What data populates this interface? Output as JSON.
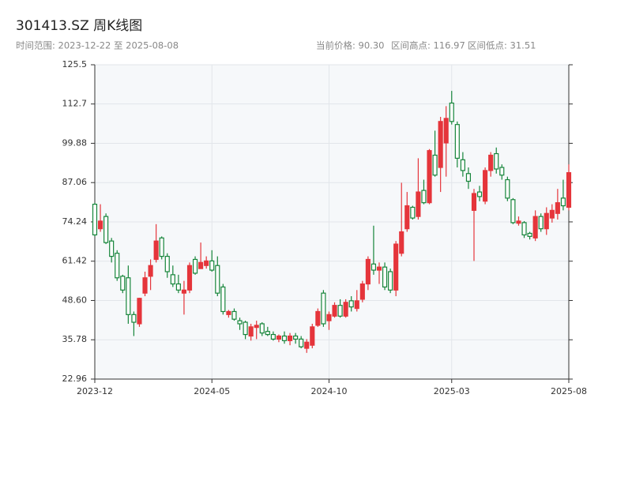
{
  "chart_data": {
    "type": "candlestick",
    "title": "301413.SZ 周K线图",
    "subtitle": "时间范围: 2023-12-22 至 2025-08-08",
    "stats": [
      "当前价格: 90.30",
      "区间高点: 116.97",
      "区间低点: 31.51"
    ],
    "categories": [
      "2023-12",
      null,
      null,
      null,
      null,
      null,
      null,
      null,
      null,
      null,
      null,
      null,
      null,
      null,
      null,
      null,
      null,
      null,
      null,
      null,
      null,
      "2024-05",
      null,
      null,
      null,
      null,
      null,
      null,
      null,
      null,
      null,
      null,
      null,
      null,
      null,
      null,
      null,
      null,
      null,
      null,
      null,
      null,
      "2024-10",
      null,
      null,
      null,
      null,
      null,
      null,
      null,
      null,
      null,
      null,
      null,
      null,
      null,
      null,
      null,
      null,
      null,
      null,
      null,
      null,
      null,
      "2025-03",
      null,
      null,
      null,
      null,
      null,
      null,
      null,
      null,
      null,
      null,
      null,
      null,
      null,
      null,
      null,
      null,
      null,
      null,
      null,
      null,
      "2025-08"
    ],
    "open": [
      80,
      72,
      76,
      68,
      64,
      56.5,
      56,
      44,
      41,
      51,
      56.5,
      62,
      69,
      63,
      57,
      54,
      51,
      52,
      62,
      59,
      60,
      61.5,
      60,
      53,
      44,
      45,
      42,
      41.5,
      37,
      39.8,
      41,
      38.5,
      37.5,
      36,
      37,
      35.5,
      37,
      36,
      33,
      34,
      40.5,
      51,
      42,
      43.5,
      47,
      43.5,
      48.5,
      46,
      49,
      54,
      60.5,
      58.5,
      59.5,
      58,
      52,
      64,
      72,
      79,
      76,
      84.5,
      80.5,
      96,
      92,
      100,
      113,
      106,
      94.5,
      90,
      78,
      84,
      81,
      91,
      96.5,
      92,
      88,
      81.5,
      73.8,
      74,
      70.5,
      69,
      76,
      72,
      75.5,
      77,
      82,
      79
    ],
    "high": [
      80.5,
      80,
      77,
      69,
      65,
      57,
      60,
      45,
      49.5,
      58,
      62,
      73.5,
      69.5,
      64,
      60,
      57,
      55,
      61,
      63,
      67.5,
      63,
      65,
      63,
      54,
      45.5,
      46,
      43,
      42,
      41,
      42,
      41.5,
      40,
      38.5,
      37.5,
      38.5,
      38,
      38,
      37,
      36,
      41,
      46,
      52,
      45,
      48,
      49,
      49,
      50,
      52,
      55,
      63,
      73,
      61,
      61,
      59,
      68,
      87,
      84,
      79.5,
      95,
      88,
      98,
      104,
      108.5,
      112,
      116.97,
      107,
      97,
      92,
      85,
      86,
      92,
      97,
      98.5,
      93,
      89,
      82,
      76,
      74.5,
      71,
      78,
      77,
      79,
      80,
      85,
      88,
      93
    ],
    "low": [
      69.5,
      71,
      67,
      61,
      55,
      51,
      41,
      37,
      40,
      50,
      52,
      61,
      62,
      56,
      53,
      51,
      44,
      51,
      57,
      59,
      59,
      58,
      50,
      44,
      43,
      42,
      39,
      36,
      35.5,
      36,
      37,
      37,
      35.5,
      35,
      34.5,
      34,
      34.5,
      33,
      31.51,
      33,
      40,
      40,
      39,
      43,
      43,
      43,
      45,
      45,
      48,
      52,
      57,
      54,
      52,
      51,
      50,
      63,
      71,
      75,
      75,
      80,
      80,
      89,
      84,
      89,
      106,
      92,
      89,
      85,
      61.5,
      81,
      80,
      89,
      90,
      88,
      81,
      73.5,
      73,
      69,
      68.5,
      68,
      71,
      70,
      74,
      75,
      78,
      78
    ],
    "close": [
      70,
      74.5,
      67.5,
      63,
      56,
      52,
      44,
      41.5,
      49.3,
      56,
      60,
      68,
      63,
      58,
      54,
      52,
      52,
      60,
      57.5,
      61,
      61.5,
      58.5,
      51,
      45,
      45,
      42.5,
      41,
      37.5,
      40,
      40.5,
      38,
      37.5,
      36,
      37,
      35.5,
      37,
      36,
      33.5,
      35,
      40,
      45,
      41,
      44,
      47,
      43.5,
      48,
      46.5,
      48.5,
      54,
      62,
      58.5,
      59.5,
      53,
      52,
      67,
      71,
      79.5,
      75.5,
      84,
      80.5,
      97.5,
      89.5,
      107,
      108,
      107,
      95,
      91,
      87.5,
      83.5,
      82.5,
      91,
      96,
      91.5,
      89.5,
      82,
      74,
      74.5,
      70,
      69.5,
      76,
      72,
      77,
      78,
      80.5,
      79.5,
      90.3
    ],
    "up_color": "#e5353b",
    "down_color": "#16853a",
    "ylim": [
      22.96,
      125.5
    ],
    "yticks": [
      22.96,
      35.78,
      {
        "value": 48.6,
        "label": "48.60"
      },
      61.42,
      74.24,
      87.06,
      99.88,
      112.7,
      125.5
    ],
    "grid": true
  }
}
